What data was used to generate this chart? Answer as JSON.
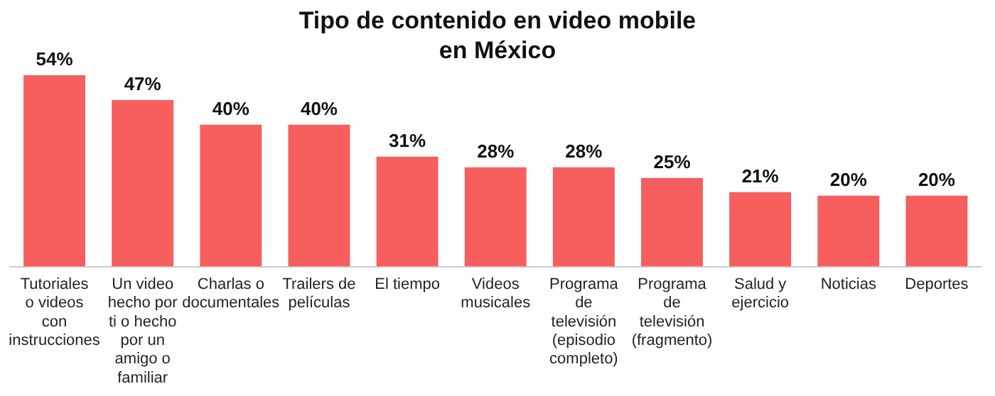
{
  "chart_data": {
    "type": "bar",
    "title": "Tipo de contenido en video mobile en México",
    "categories": [
      "Tutoriales o videos con instrucciones",
      "Un video hecho por ti o hecho por un amigo o familiar",
      "Charlas o documentales",
      "Trailers de películas",
      "El tiempo",
      "Videos musicales",
      "Programa de televisión (episodio completo)",
      "Programa de televisión (fragmento)",
      "Salud y ejercicio",
      "Noticias",
      "Deportes"
    ],
    "values": [
      54,
      47,
      40,
      40,
      31,
      28,
      28,
      25,
      21,
      20,
      20
    ],
    "value_labels": [
      "54%",
      "47%",
      "40%",
      "40%",
      "31%",
      "28%",
      "28%",
      "25%",
      "21%",
      "20%",
      "20%"
    ],
    "color": "#f75e5e",
    "grid": false
  }
}
